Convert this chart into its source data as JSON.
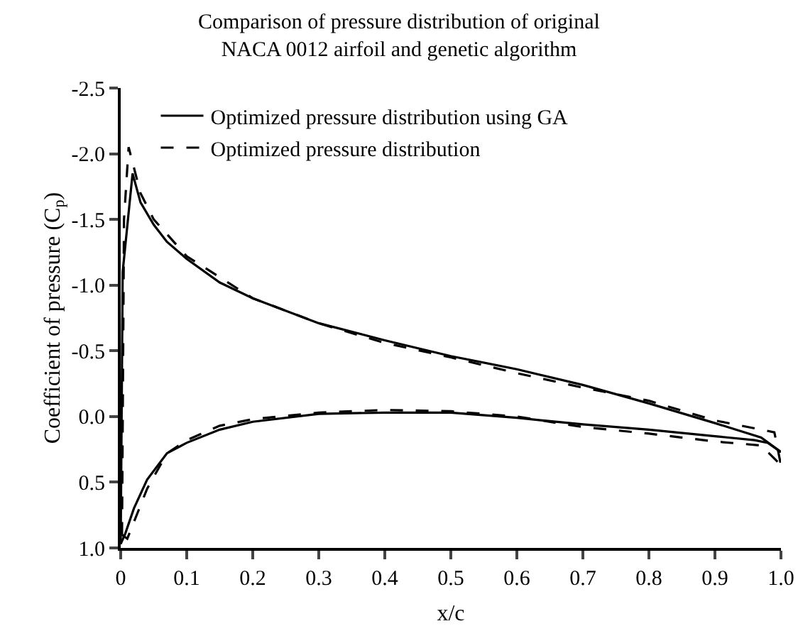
{
  "chart_data": {
    "type": "line",
    "title": "Comparison of pressure distribution of original\nNACA 0012 airfoil and genetic algorithm",
    "xlabel": "x/c",
    "ylabel": "Coefficient of pressure (C$_{p}$)",
    "xlim": [
      0,
      1.0
    ],
    "xticks": [
      0,
      0.1,
      0.2,
      0.3,
      0.4,
      0.5,
      0.6,
      0.7,
      0.8,
      0.9,
      {
        "value": 1.0,
        "label": "1.0"
      }
    ],
    "ylim": [
      1.0,
      -2.5
    ],
    "yticks": [
      {
        "value": -2.5,
        "label": "-2.5"
      },
      {
        "value": -2.0,
        "label": "-2.0"
      },
      {
        "value": -1.5,
        "label": "-1.5"
      },
      {
        "value": -1.0,
        "label": "-1.0"
      },
      {
        "value": -0.5,
        "label": "-0.5"
      },
      {
        "value": 0.0,
        "label": "0.0"
      },
      {
        "value": 0.5,
        "label": "0.5"
      },
      {
        "value": 1.0,
        "label": "1.0"
      }
    ],
    "grid": false,
    "legend": "top left",
    "marker": "none",
    "series": [
      {
        "name": "Optimized pressure distribution using GA",
        "color": "#000000",
        "line_style": "solid",
        "x": [
          0,
          0.003,
          0.018,
          0.03,
          0.05,
          0.07,
          0.1,
          0.15,
          0.2,
          0.3,
          0.4,
          0.5,
          0.6,
          0.7,
          0.8,
          0.9,
          0.97,
          1.0
        ],
        "values": [
          0.97,
          -1.1,
          -1.85,
          -1.63,
          -1.46,
          -1.33,
          -1.2,
          -1.02,
          -0.9,
          -0.71,
          -0.58,
          -0.46,
          -0.36,
          -0.24,
          -0.1,
          0.05,
          0.16,
          0.27
        ]
      },
      {
        "name": "Optimized pressure distribution",
        "color": "#000000",
        "line_style": "dashed",
        "x": [
          0.002,
          0.005,
          0.012,
          0.03,
          0.05,
          0.1,
          0.2,
          0.3,
          0.4,
          0.5,
          0.6,
          0.7,
          0.8,
          0.9,
          0.99,
          1.0
        ],
        "values": [
          0.9,
          -1.5,
          -2.05,
          -1.7,
          -1.5,
          -1.22,
          -0.9,
          -0.71,
          -0.56,
          -0.45,
          -0.33,
          -0.22,
          -0.12,
          0.03,
          0.12,
          0.37
        ]
      },
      {
        "color": "#000000",
        "line_style": "solid",
        "x": [
          0,
          0.007,
          0.02,
          0.04,
          0.07,
          0.1,
          0.15,
          0.2,
          0.3,
          0.4,
          0.5,
          0.6,
          0.7,
          0.8,
          0.9,
          0.96,
          0.98,
          1.0
        ],
        "values": [
          0.97,
          0.89,
          0.7,
          0.48,
          0.28,
          0.2,
          0.1,
          0.04,
          -0.02,
          -0.03,
          -0.03,
          0.01,
          0.06,
          0.1,
          0.15,
          0.18,
          0.2,
          0.27
        ]
      },
      {
        "color": "#000000",
        "line_style": "dashed",
        "x": [
          0.002,
          0.01,
          0.04,
          0.07,
          0.1,
          0.15,
          0.2,
          0.3,
          0.4,
          0.5,
          0.6,
          0.7,
          0.8,
          0.9,
          0.97,
          1.0
        ],
        "values": [
          0.9,
          0.93,
          0.55,
          0.28,
          0.18,
          0.07,
          0.02,
          -0.03,
          -0.05,
          -0.04,
          0.0,
          0.08,
          0.13,
          0.19,
          0.22,
          0.37
        ]
      }
    ]
  }
}
